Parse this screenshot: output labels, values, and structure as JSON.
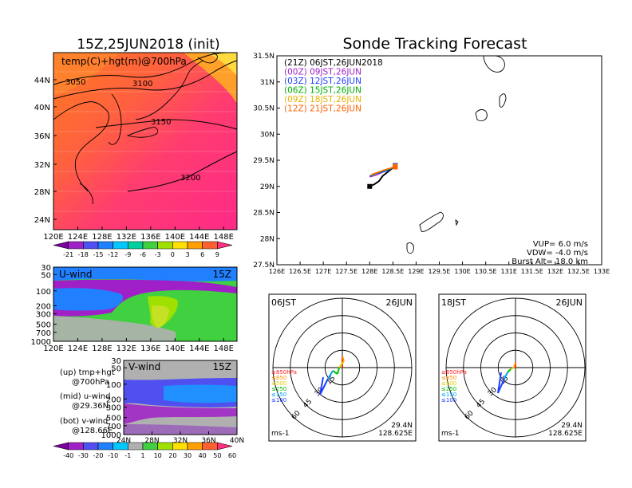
{
  "main": {
    "init_title": "15Z,25JUN2018 (init)",
    "forecast_title": "Sonde Tracking Forecast"
  },
  "map_panel": {
    "label": "temp(C)+hgt(m)@700hPa",
    "contour_labels": [
      "3050",
      "3100",
      "3150",
      "3200"
    ],
    "lat_ticks": [
      "44N",
      "40N",
      "36N",
      "32N",
      "28N",
      "24N"
    ],
    "lon_ticks": [
      "120E",
      "124E",
      "128E",
      "132E",
      "136E",
      "140E",
      "144E",
      "148E"
    ],
    "colorbar_labels": [
      "-21",
      "-18",
      "-15",
      "-12",
      "-9",
      "-6",
      "-3",
      "0",
      "3",
      "6",
      "9"
    ],
    "colorbar_colors": [
      "#7a00a0",
      "#a020c8",
      "#5050f0",
      "#2080ff",
      "#00c8ff",
      "#00d0a0",
      "#40d040",
      "#a0e000",
      "#ffe000",
      "#ffa000",
      "#ff6030",
      "#ff3080"
    ]
  },
  "uwind_panel": {
    "label": "U-wind",
    "time": "15Z",
    "p_ticks": [
      "30",
      "50",
      "100",
      "200",
      "300",
      "500",
      "700",
      "1000"
    ],
    "lon_ticks": [
      "120E",
      "124E",
      "128E",
      "132E",
      "136E",
      "140E",
      "144E",
      "148E"
    ]
  },
  "vwind_panel": {
    "label": "V-wind",
    "time": "15Z",
    "p_ticks": [
      "30",
      "50",
      "100",
      "200",
      "300",
      "500",
      "700",
      "1000"
    ],
    "lat_ticks": [
      "24N",
      "28N",
      "32N",
      "36N",
      "40N"
    ]
  },
  "legend_notes": [
    {
      "a": "(up) tmp+hgt",
      "b": "@700hPa"
    },
    {
      "a": "(mid) u-wind",
      "b": "@29.36N"
    },
    {
      "a": "(bot) v-wind",
      "b": "@128.66E"
    }
  ],
  "wind_colorbar": {
    "labels": [
      "-40",
      "-30",
      "-20",
      "-10",
      "-1",
      "1",
      "10",
      "20",
      "30",
      "40",
      "50",
      "60"
    ],
    "colors": [
      "#7a00a0",
      "#a020c8",
      "#5050f0",
      "#2080ff",
      "#00c8ff",
      "#b0b0b0",
      "#40d040",
      "#a0e000",
      "#ffe000",
      "#ffa000",
      "#ff6030",
      "#ff3080"
    ]
  },
  "track_panel": {
    "entries": [
      {
        "label": "(21Z)  06JST,26JUN2018",
        "color": "#000000"
      },
      {
        "label": "(00Z)  09JST,26JUN",
        "color": "#a020c8"
      },
      {
        "label": "(03Z)  12JST,26JUN",
        "color": "#2040ff"
      },
      {
        "label": "(06Z)  15JST,26JUN",
        "color": "#00b000"
      },
      {
        "label": "(09Z)  18JST,26JUN",
        "color": "#e8b000"
      },
      {
        "label": "(12Z)  21JST,26JUN",
        "color": "#ff6000"
      }
    ],
    "lat_ticks": [
      "31.5N",
      "31N",
      "30.5N",
      "30N",
      "29.5N",
      "29N",
      "28.5N",
      "28N",
      "27.5N"
    ],
    "lon_ticks": [
      "126E",
      "126.5E",
      "127E",
      "127.5E",
      "128E",
      "128.5E",
      "129E",
      "129.5E",
      "130E",
      "130.5E",
      "131E",
      "131.5E",
      "132E",
      "132.5E",
      "133E"
    ],
    "info": [
      "VUP=  6.0 m/s",
      "VDW= -4.0 m/s",
      "Burst Alt=  18.0  km"
    ]
  },
  "hodographs": [
    {
      "time": "06JST",
      "date": "26JUN",
      "lat": "29.4N",
      "lon": "128.625E",
      "unit": "ms-1",
      "ring_labels": [
        "15",
        "30",
        "45",
        "60"
      ]
    },
    {
      "time": "18JST",
      "date": "26JUN",
      "lat": "29.4N",
      "lon": "128.625E",
      "unit": "ms-1",
      "ring_labels": [
        "15",
        "30",
        "45",
        "60"
      ]
    }
  ],
  "hodo_levels": [
    {
      "label": "≥850hPa",
      "color": "#ff2020"
    },
    {
      "label": "≤850",
      "color": "#ff9000"
    },
    {
      "label": "≤500",
      "color": "#e0d000"
    },
    {
      "label": "≤250",
      "color": "#00c000"
    },
    {
      "label": "≤150",
      "color": "#00a0ff"
    },
    {
      "label": "≤100",
      "color": "#2040ff"
    }
  ],
  "chart_data": {
    "type": "line",
    "title": "Sonde Tracking Forecast",
    "xlabel": "",
    "ylabel": "",
    "xlim": [
      126,
      133
    ],
    "ylim": [
      27.5,
      31.5
    ],
    "series": [
      {
        "name": "(21Z)  06JST,26JUN2018",
        "x": [
          128.0,
          128.1,
          128.2,
          128.28,
          128.45,
          128.55
        ],
        "y": [
          29.0,
          29.04,
          29.1,
          29.2,
          29.32,
          29.4
        ]
      },
      {
        "name": "(00Z)  09JST,26JUN",
        "x": [
          128.0,
          128.15,
          128.3,
          128.45,
          128.55
        ],
        "y": [
          29.18,
          29.22,
          29.28,
          29.34,
          29.4
        ]
      },
      {
        "name": "(03Z)  12JST,26JUN",
        "x": [
          128.0,
          128.12,
          128.3,
          128.45,
          128.55
        ],
        "y": [
          29.2,
          29.24,
          29.28,
          29.33,
          29.39
        ]
      },
      {
        "name": "(06Z)  15JST,26JUN",
        "x": [
          128.02,
          128.15,
          128.3,
          128.45,
          128.55
        ],
        "y": [
          29.21,
          29.25,
          29.3,
          29.34,
          29.38
        ]
      },
      {
        "name": "(09Z)  18JST,26JUN",
        "x": [
          128.03,
          128.15,
          128.3,
          128.45,
          128.55
        ],
        "y": [
          29.22,
          29.26,
          29.31,
          29.35,
          29.38
        ]
      },
      {
        "name": "(12Z)  21JST,26JUN",
        "x": [
          128.04,
          128.18,
          128.3,
          128.45,
          128.55
        ],
        "y": [
          29.23,
          29.27,
          29.31,
          29.35,
          29.37
        ]
      }
    ]
  }
}
